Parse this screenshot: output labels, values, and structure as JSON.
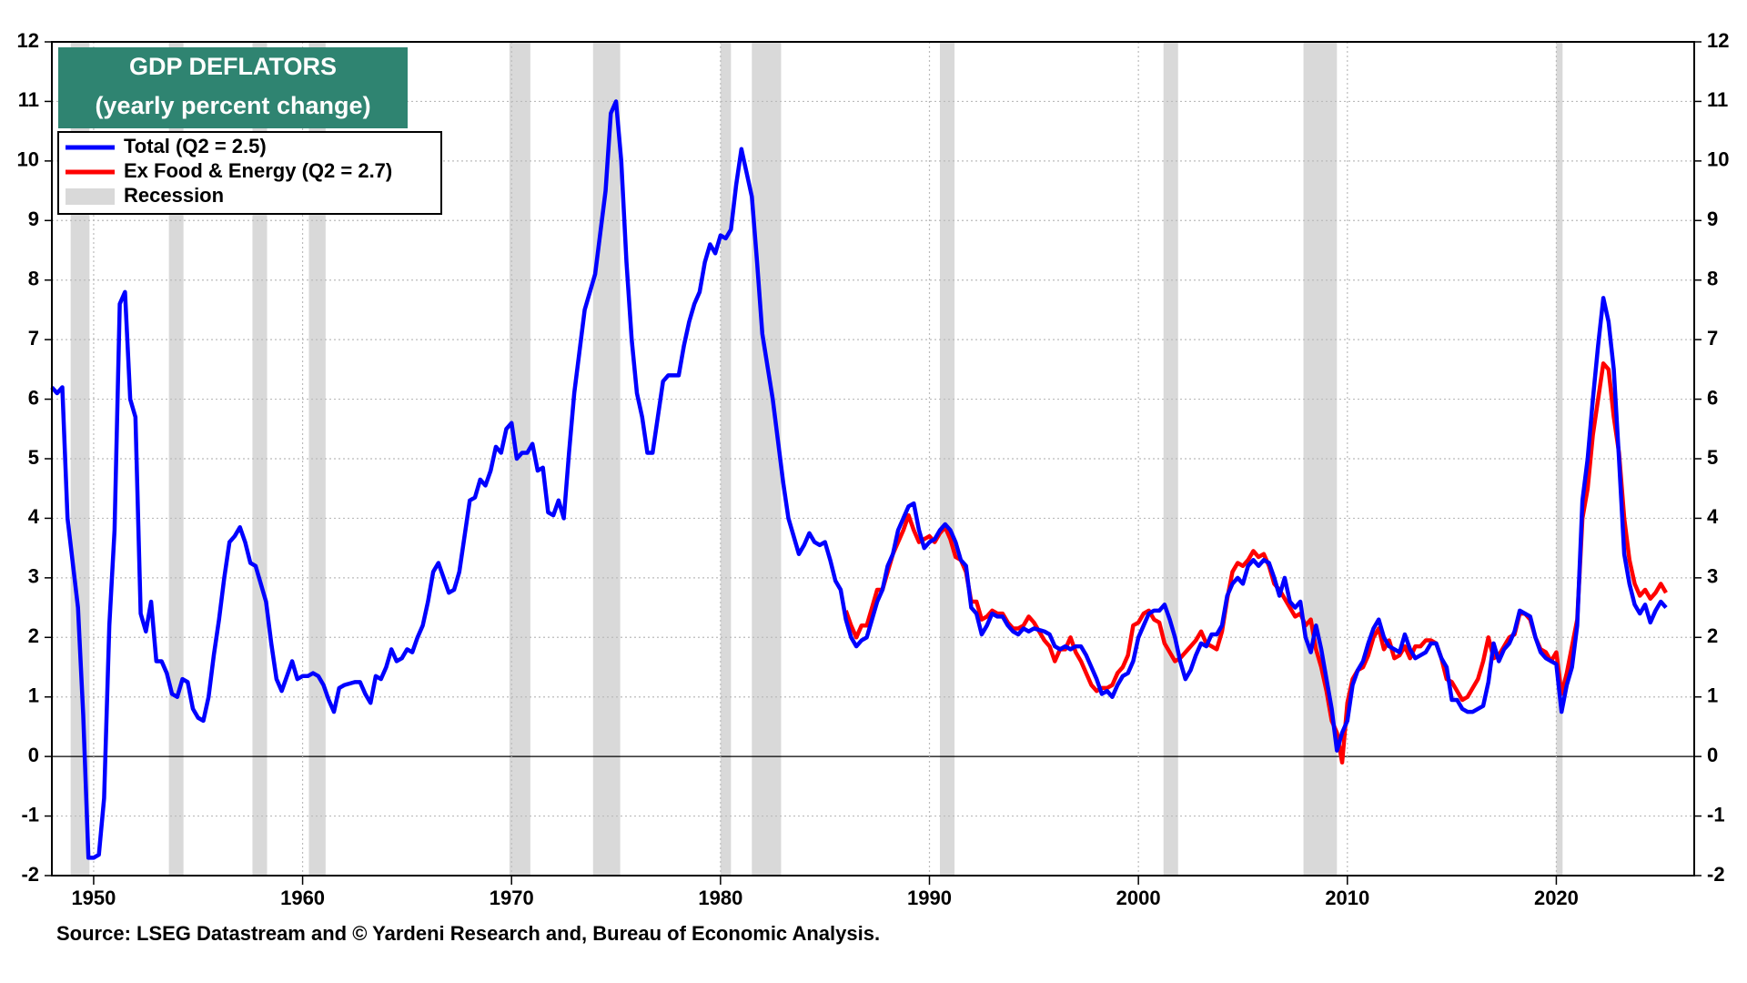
{
  "chart_data": {
    "type": "line",
    "title": "GDP DEFLATORS",
    "subtitle": "(yearly percent change)",
    "source": "Source: LSEG Datastream and © Yardeni Research and, Bureau of Economic Analysis.",
    "recession_label": "Recession",
    "recession_color": "#d9d9d9",
    "title_box_color": "#2f8471",
    "grid": true,
    "xlim": [
      1948,
      2026.6
    ],
    "xticks": [
      1950,
      1960,
      1970,
      1980,
      1990,
      2000,
      2010,
      2020
    ],
    "ylim": [
      -2,
      12
    ],
    "yticks": [
      -2,
      -1,
      0,
      1,
      2,
      3,
      4,
      5,
      6,
      7,
      8,
      9,
      10,
      11,
      12
    ],
    "recessions": [
      [
        1948.9,
        1949.8
      ],
      [
        1953.6,
        1954.3
      ],
      [
        1957.6,
        1958.3
      ],
      [
        1960.3,
        1961.1
      ],
      [
        1969.9,
        1970.9
      ],
      [
        1973.9,
        1975.2
      ],
      [
        1980.0,
        1980.5
      ],
      [
        1981.5,
        1982.9
      ],
      [
        1990.5,
        1991.2
      ],
      [
        2001.2,
        2001.9
      ],
      [
        2007.9,
        2009.5
      ],
      [
        2020.0,
        2020.3
      ]
    ],
    "series": [
      {
        "name": "Total (Q2 = 2.5)",
        "color": "#0000ff",
        "x": [
          1948.0,
          1948.25,
          1948.5,
          1948.75,
          1949.25,
          1949.5,
          1949.75,
          1950.0,
          1950.25,
          1950.5,
          1950.75,
          1951.0,
          1951.25,
          1951.5,
          1951.75,
          1952.0,
          1952.25,
          1952.5,
          1952.75,
          1953.0,
          1953.25,
          1953.5,
          1953.75,
          1954.0,
          1954.25,
          1954.5,
          1954.75,
          1955.0,
          1955.25,
          1955.5,
          1955.75,
          1956.0,
          1956.25,
          1956.5,
          1956.75,
          1957.0,
          1957.25,
          1957.5,
          1957.75,
          1958.0,
          1958.25,
          1958.5,
          1958.75,
          1959.0,
          1959.25,
          1959.5,
          1959.75,
          1960.0,
          1960.25,
          1960.5,
          1960.75,
          1961.0,
          1961.25,
          1961.5,
          1961.75,
          1962.0,
          1962.5,
          1962.75,
          1963.0,
          1963.25,
          1963.5,
          1963.75,
          1964.0,
          1964.25,
          1964.5,
          1964.75,
          1965.0,
          1965.25,
          1965.5,
          1965.75,
          1966.0,
          1966.25,
          1966.5,
          1966.75,
          1967.0,
          1967.25,
          1967.5,
          1967.75,
          1968.0,
          1968.25,
          1968.5,
          1968.75,
          1969.0,
          1969.25,
          1969.5,
          1969.75,
          1970.0,
          1970.25,
          1970.5,
          1970.75,
          1971.0,
          1971.25,
          1971.5,
          1971.75,
          1972.0,
          1972.25,
          1972.5,
          1972.75,
          1973.0,
          1973.25,
          1973.5,
          1974.0,
          1974.5,
          1974.75,
          1975.0,
          1975.25,
          1975.5,
          1975.75,
          1976.0,
          1976.25,
          1976.5,
          1976.75,
          1977.0,
          1977.25,
          1977.5,
          1977.75,
          1978.0,
          1978.25,
          1978.5,
          1978.75,
          1979.0,
          1979.25,
          1979.5,
          1979.75,
          1980.0,
          1980.25,
          1980.5,
          1980.75,
          1981.0,
          1981.25,
          1981.5,
          1981.75,
          1982.0,
          1982.5,
          1982.75,
          1983.0,
          1983.25,
          1983.5,
          1983.75,
          1984.0,
          1984.25,
          1984.5,
          1984.75,
          1985.0,
          1985.25,
          1985.5,
          1985.75,
          1986.0,
          1986.25,
          1986.5,
          1986.75,
          1987.0,
          1987.25,
          1987.5,
          1987.75,
          1988.0,
          1988.25,
          1988.5,
          1988.75,
          1989.0,
          1989.25,
          1989.5,
          1989.75,
          1990.0,
          1990.25,
          1990.5,
          1990.75,
          1991.0,
          1991.25,
          1991.5,
          1991.75,
          1992.0,
          1992.25,
          1992.5,
          1992.75,
          1993.0,
          1993.25,
          1993.5,
          1993.75,
          1994.0,
          1994.25,
          1994.5,
          1994.75,
          1995.0,
          1995.5,
          1995.75,
          1996.0,
          1996.25,
          1996.5,
          1996.75,
          1997.0,
          1997.25,
          1997.5,
          1997.75,
          1998.0,
          1998.25,
          1998.5,
          1998.75,
          1999.0,
          1999.25,
          1999.5,
          1999.75,
          2000.0,
          2000.25,
          2000.5,
          2000.75,
          2001.0,
          2001.25,
          2001.5,
          2001.75,
          2002.0,
          2002.25,
          2002.5,
          2002.75,
          2003.0,
          2003.25,
          2003.5,
          2003.75,
          2004.0,
          2004.25,
          2004.5,
          2004.75,
          2005.0,
          2005.25,
          2005.5,
          2005.75,
          2006.0,
          2006.25,
          2006.5,
          2006.75,
          2007.0,
          2007.25,
          2007.5,
          2007.75,
          2008.0,
          2008.25,
          2008.5,
          2008.75,
          2009.0,
          2009.25,
          2009.5,
          2009.75,
          2010.0,
          2010.25,
          2010.5,
          2010.75,
          2011.0,
          2011.25,
          2011.5,
          2011.75,
          2012.0,
          2012.25,
          2012.5,
          2012.75,
          2013.0,
          2013.25,
          2013.5,
          2013.75,
          2014.0,
          2014.25,
          2014.5,
          2014.75,
          2015.0,
          2015.25,
          2015.5,
          2015.75,
          2016.0,
          2016.25,
          2016.5,
          2016.75,
          2017.0,
          2017.25,
          2017.5,
          2017.75,
          2018.0,
          2018.25,
          2018.5,
          2018.75,
          2019.0,
          2019.25,
          2019.5,
          2019.75,
          2020.0,
          2020.25,
          2020.5,
          2020.75,
          2021.0,
          2021.25,
          2021.5,
          2021.75,
          2022.0,
          2022.25,
          2022.5,
          2022.75,
          2023.0,
          2023.25,
          2023.5,
          2023.75,
          2024.0,
          2024.25,
          2024.5,
          2024.75,
          2025.0,
          2025.25
        ],
        "values": [
          6.2,
          6.1,
          6.2,
          4.0,
          2.5,
          0.7,
          -1.7,
          -1.7,
          -1.65,
          -0.7,
          2.2,
          3.8,
          7.6,
          7.8,
          6.0,
          5.7,
          2.4,
          2.1,
          2.6,
          1.6,
          1.6,
          1.4,
          1.05,
          1.0,
          1.3,
          1.25,
          0.8,
          0.65,
          0.6,
          1.0,
          1.7,
          2.3,
          3.0,
          3.6,
          3.7,
          3.85,
          3.6,
          3.25,
          3.2,
          2.9,
          2.6,
          1.9,
          1.3,
          1.1,
          1.35,
          1.6,
          1.3,
          1.35,
          1.35,
          1.4,
          1.35,
          1.2,
          0.95,
          0.75,
          1.15,
          1.2,
          1.25,
          1.25,
          1.05,
          0.9,
          1.35,
          1.3,
          1.5,
          1.8,
          1.6,
          1.65,
          1.8,
          1.75,
          2.0,
          2.2,
          2.6,
          3.1,
          3.25,
          3.0,
          2.75,
          2.8,
          3.1,
          3.7,
          4.3,
          4.35,
          4.65,
          4.55,
          4.8,
          5.2,
          5.1,
          5.5,
          5.6,
          5.0,
          5.1,
          5.1,
          5.25,
          4.8,
          4.85,
          4.1,
          4.05,
          4.3,
          4.0,
          5.1,
          6.1,
          6.8,
          7.5,
          8.1,
          9.5,
          10.8,
          11.0,
          10.0,
          8.3,
          7.0,
          6.1,
          5.7,
          5.1,
          5.1,
          5.7,
          6.3,
          6.4,
          6.4,
          6.4,
          6.9,
          7.3,
          7.6,
          7.8,
          8.3,
          8.6,
          8.45,
          8.75,
          8.7,
          8.85,
          9.6,
          10.2,
          9.8,
          9.4,
          8.3,
          7.1,
          6.0,
          5.3,
          4.6,
          4.0,
          3.7,
          3.4,
          3.55,
          3.75,
          3.6,
          3.55,
          3.6,
          3.3,
          2.95,
          2.8,
          2.3,
          2.0,
          1.85,
          1.95,
          2.0,
          2.3,
          2.6,
          2.8,
          3.2,
          3.4,
          3.8,
          4.0,
          4.2,
          4.25,
          3.8,
          3.5,
          3.6,
          3.65,
          3.8,
          3.9,
          3.8,
          3.6,
          3.3,
          3.2,
          2.5,
          2.4,
          2.05,
          2.2,
          2.4,
          2.35,
          2.35,
          2.2,
          2.1,
          2.05,
          2.15,
          2.1,
          2.15,
          2.1,
          2.05,
          1.85,
          1.8,
          1.85,
          1.8,
          1.85,
          1.85,
          1.7,
          1.5,
          1.3,
          1.05,
          1.1,
          1.0,
          1.2,
          1.35,
          1.4,
          1.6,
          2.0,
          2.2,
          2.4,
          2.45,
          2.45,
          2.55,
          2.3,
          2.0,
          1.6,
          1.3,
          1.45,
          1.7,
          1.9,
          1.85,
          2.05,
          2.05,
          2.2,
          2.7,
          2.9,
          3.0,
          2.9,
          3.2,
          3.3,
          3.2,
          3.3,
          3.25,
          3.0,
          2.7,
          3.0,
          2.6,
          2.5,
          2.6,
          2.0,
          1.75,
          2.2,
          1.8,
          1.3,
          0.8,
          0.1,
          0.4,
          0.6,
          1.2,
          1.45,
          1.6,
          1.9,
          2.15,
          2.3,
          2.0,
          1.85,
          1.8,
          1.75,
          2.05,
          1.8,
          1.65,
          1.7,
          1.75,
          1.9,
          1.9,
          1.65,
          1.5,
          0.95,
          0.95,
          0.8,
          0.75,
          0.75,
          0.8,
          0.85,
          1.25,
          1.9,
          1.6,
          1.8,
          1.9,
          2.1,
          2.45,
          2.4,
          2.35,
          2.0,
          1.75,
          1.65,
          1.6,
          1.55,
          0.75,
          1.2,
          1.5,
          2.2,
          4.3,
          5.0,
          6.0,
          6.9,
          7.7,
          7.3,
          6.5,
          5.0,
          3.4,
          2.9,
          2.55,
          2.4,
          2.55,
          2.25,
          2.45,
          2.6,
          2.5
        ]
      },
      {
        "name": "Ex Food & Energy (Q2 = 2.7)",
        "color": "#ff0000",
        "x": [
          1986.0,
          1986.25,
          1986.5,
          1986.75,
          1987.0,
          1987.25,
          1987.5,
          1987.75,
          1988.0,
          1988.25,
          1988.5,
          1988.75,
          1989.0,
          1989.25,
          1989.5,
          1989.75,
          1990.0,
          1990.25,
          1990.5,
          1990.75,
          1991.0,
          1991.25,
          1991.5,
          1991.75,
          1992.0,
          1992.25,
          1992.5,
          1992.75,
          1993.0,
          1993.25,
          1993.5,
          1993.75,
          1994.0,
          1994.25,
          1994.5,
          1994.75,
          1995.0,
          1995.25,
          1995.5,
          1995.75,
          1996.0,
          1996.25,
          1996.5,
          1996.75,
          1997.0,
          1997.25,
          1997.5,
          1997.75,
          1998.0,
          1998.25,
          1998.5,
          1998.75,
          1999.0,
          1999.25,
          1999.5,
          1999.75,
          2000.0,
          2000.25,
          2000.5,
          2000.75,
          2001.0,
          2001.25,
          2001.5,
          2001.75,
          2002.0,
          2002.25,
          2002.5,
          2002.75,
          2003.0,
          2003.25,
          2003.5,
          2003.75,
          2004.0,
          2004.25,
          2004.5,
          2004.75,
          2005.0,
          2005.25,
          2005.5,
          2005.75,
          2006.0,
          2006.25,
          2006.5,
          2006.75,
          2007.0,
          2007.25,
          2007.5,
          2007.75,
          2008.0,
          2008.25,
          2008.5,
          2008.75,
          2009.0,
          2009.25,
          2009.5,
          2009.75,
          2010.0,
          2010.25,
          2010.5,
          2010.75,
          2011.0,
          2011.25,
          2011.5,
          2011.75,
          2012.0,
          2012.25,
          2012.5,
          2012.75,
          2013.0,
          2013.25,
          2013.5,
          2013.75,
          2014.0,
          2014.25,
          2014.5,
          2014.75,
          2015.0,
          2015.25,
          2015.5,
          2015.75,
          2016.0,
          2016.25,
          2016.5,
          2016.75,
          2017.0,
          2017.25,
          2017.5,
          2017.75,
          2018.0,
          2018.25,
          2018.5,
          2018.75,
          2019.0,
          2019.25,
          2019.5,
          2019.75,
          2020.0,
          2020.25,
          2020.5,
          2020.75,
          2021.0,
          2021.25,
          2021.5,
          2021.75,
          2022.0,
          2022.25,
          2022.5,
          2022.75,
          2023.0,
          2023.25,
          2023.5,
          2023.75,
          2024.0,
          2024.25,
          2024.5,
          2024.75,
          2025.0,
          2025.25
        ],
        "values": [
          2.45,
          2.2,
          2.0,
          2.2,
          2.2,
          2.5,
          2.8,
          2.8,
          3.1,
          3.4,
          3.6,
          3.8,
          4.05,
          3.8,
          3.6,
          3.65,
          3.7,
          3.6,
          3.75,
          3.85,
          3.65,
          3.35,
          3.3,
          3.1,
          2.6,
          2.6,
          2.3,
          2.35,
          2.45,
          2.4,
          2.4,
          2.25,
          2.15,
          2.15,
          2.2,
          2.35,
          2.25,
          2.1,
          1.95,
          1.85,
          1.6,
          1.8,
          1.8,
          2.0,
          1.75,
          1.6,
          1.4,
          1.2,
          1.1,
          1.15,
          1.15,
          1.2,
          1.4,
          1.5,
          1.7,
          2.2,
          2.25,
          2.4,
          2.45,
          2.3,
          2.25,
          1.9,
          1.75,
          1.6,
          1.65,
          1.75,
          1.85,
          1.95,
          2.1,
          1.9,
          1.85,
          1.8,
          2.1,
          2.65,
          3.1,
          3.25,
          3.2,
          3.3,
          3.45,
          3.35,
          3.4,
          3.2,
          2.9,
          2.8,
          2.65,
          2.5,
          2.35,
          2.4,
          2.2,
          2.3,
          1.8,
          1.5,
          1.1,
          0.6,
          0.4,
          -0.1,
          0.9,
          1.3,
          1.45,
          1.5,
          1.7,
          2.0,
          2.15,
          1.8,
          1.95,
          1.65,
          1.7,
          1.85,
          1.65,
          1.85,
          1.85,
          1.95,
          1.95,
          1.9,
          1.65,
          1.3,
          1.25,
          1.1,
          0.95,
          1.0,
          1.15,
          1.3,
          1.6,
          2.0,
          1.65,
          1.7,
          1.85,
          2.0,
          2.05,
          2.4,
          2.4,
          2.3,
          2.0,
          1.8,
          1.75,
          1.6,
          1.75,
          1.05,
          1.4,
          1.85,
          2.3,
          4.0,
          4.5,
          5.4,
          6.0,
          6.6,
          6.5,
          5.7,
          5.1,
          4.0,
          3.3,
          2.9,
          2.7,
          2.8,
          2.65,
          2.75,
          2.9,
          2.75
        ]
      }
    ]
  }
}
